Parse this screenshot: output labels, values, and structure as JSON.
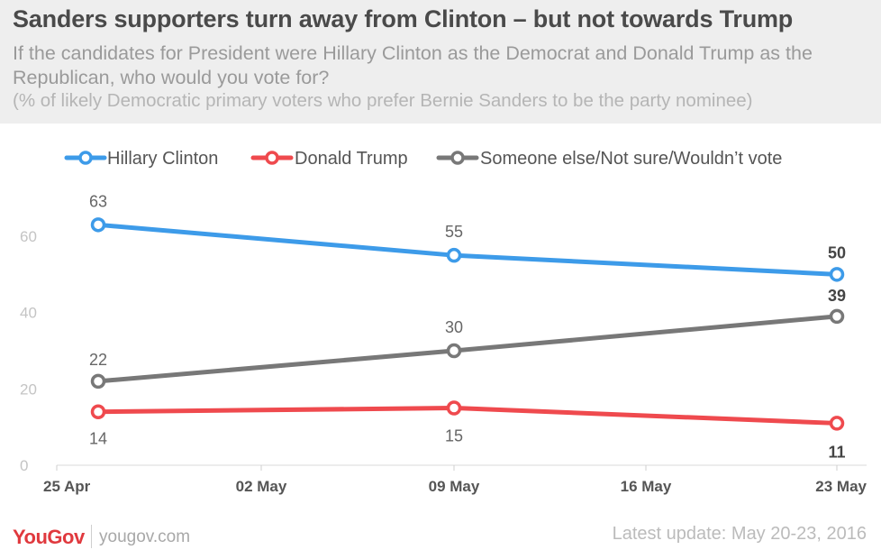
{
  "header": {
    "title": "Sanders supporters turn away from Clinton – but not towards Trump",
    "subtitle": "If the candidates for President were Hillary Clinton as the Democrat and Donald Trump as the Republican, who would you vote for?",
    "note": "(% of likely Democratic primary voters who prefer Bernie Sanders to be the party nominee)"
  },
  "chart_data": {
    "type": "line",
    "title": "Sanders supporters turn away from Clinton – but not towards Trump",
    "xlabel": "",
    "ylabel": "",
    "x_ticks": [
      "25 Apr",
      "02 May",
      "09 May",
      "16 May",
      "23 May"
    ],
    "x": [
      "25 Apr",
      "09 May",
      "23 May"
    ],
    "ylim": [
      0,
      70
    ],
    "y_ticks": [
      0,
      20,
      40,
      60
    ],
    "legend_position": "top",
    "series": [
      {
        "name": "Hillary Clinton",
        "color": "#3d9be9",
        "values": [
          63,
          55,
          50
        ],
        "labels": [
          "63",
          "55",
          "50"
        ]
      },
      {
        "name": "Donald Trump",
        "color": "#ef4a4e",
        "values": [
          14,
          15,
          11
        ],
        "labels": [
          "14",
          "15",
          "11"
        ]
      },
      {
        "name": "Someone else/Not sure/Wouldn’t vote",
        "color": "#787878",
        "values": [
          22,
          30,
          39
        ],
        "labels": [
          "22",
          "30",
          "39"
        ]
      }
    ]
  },
  "footer": {
    "logo": "YouGov",
    "site": "yougov.com",
    "update": "Latest update: May 20-23, 2016"
  }
}
